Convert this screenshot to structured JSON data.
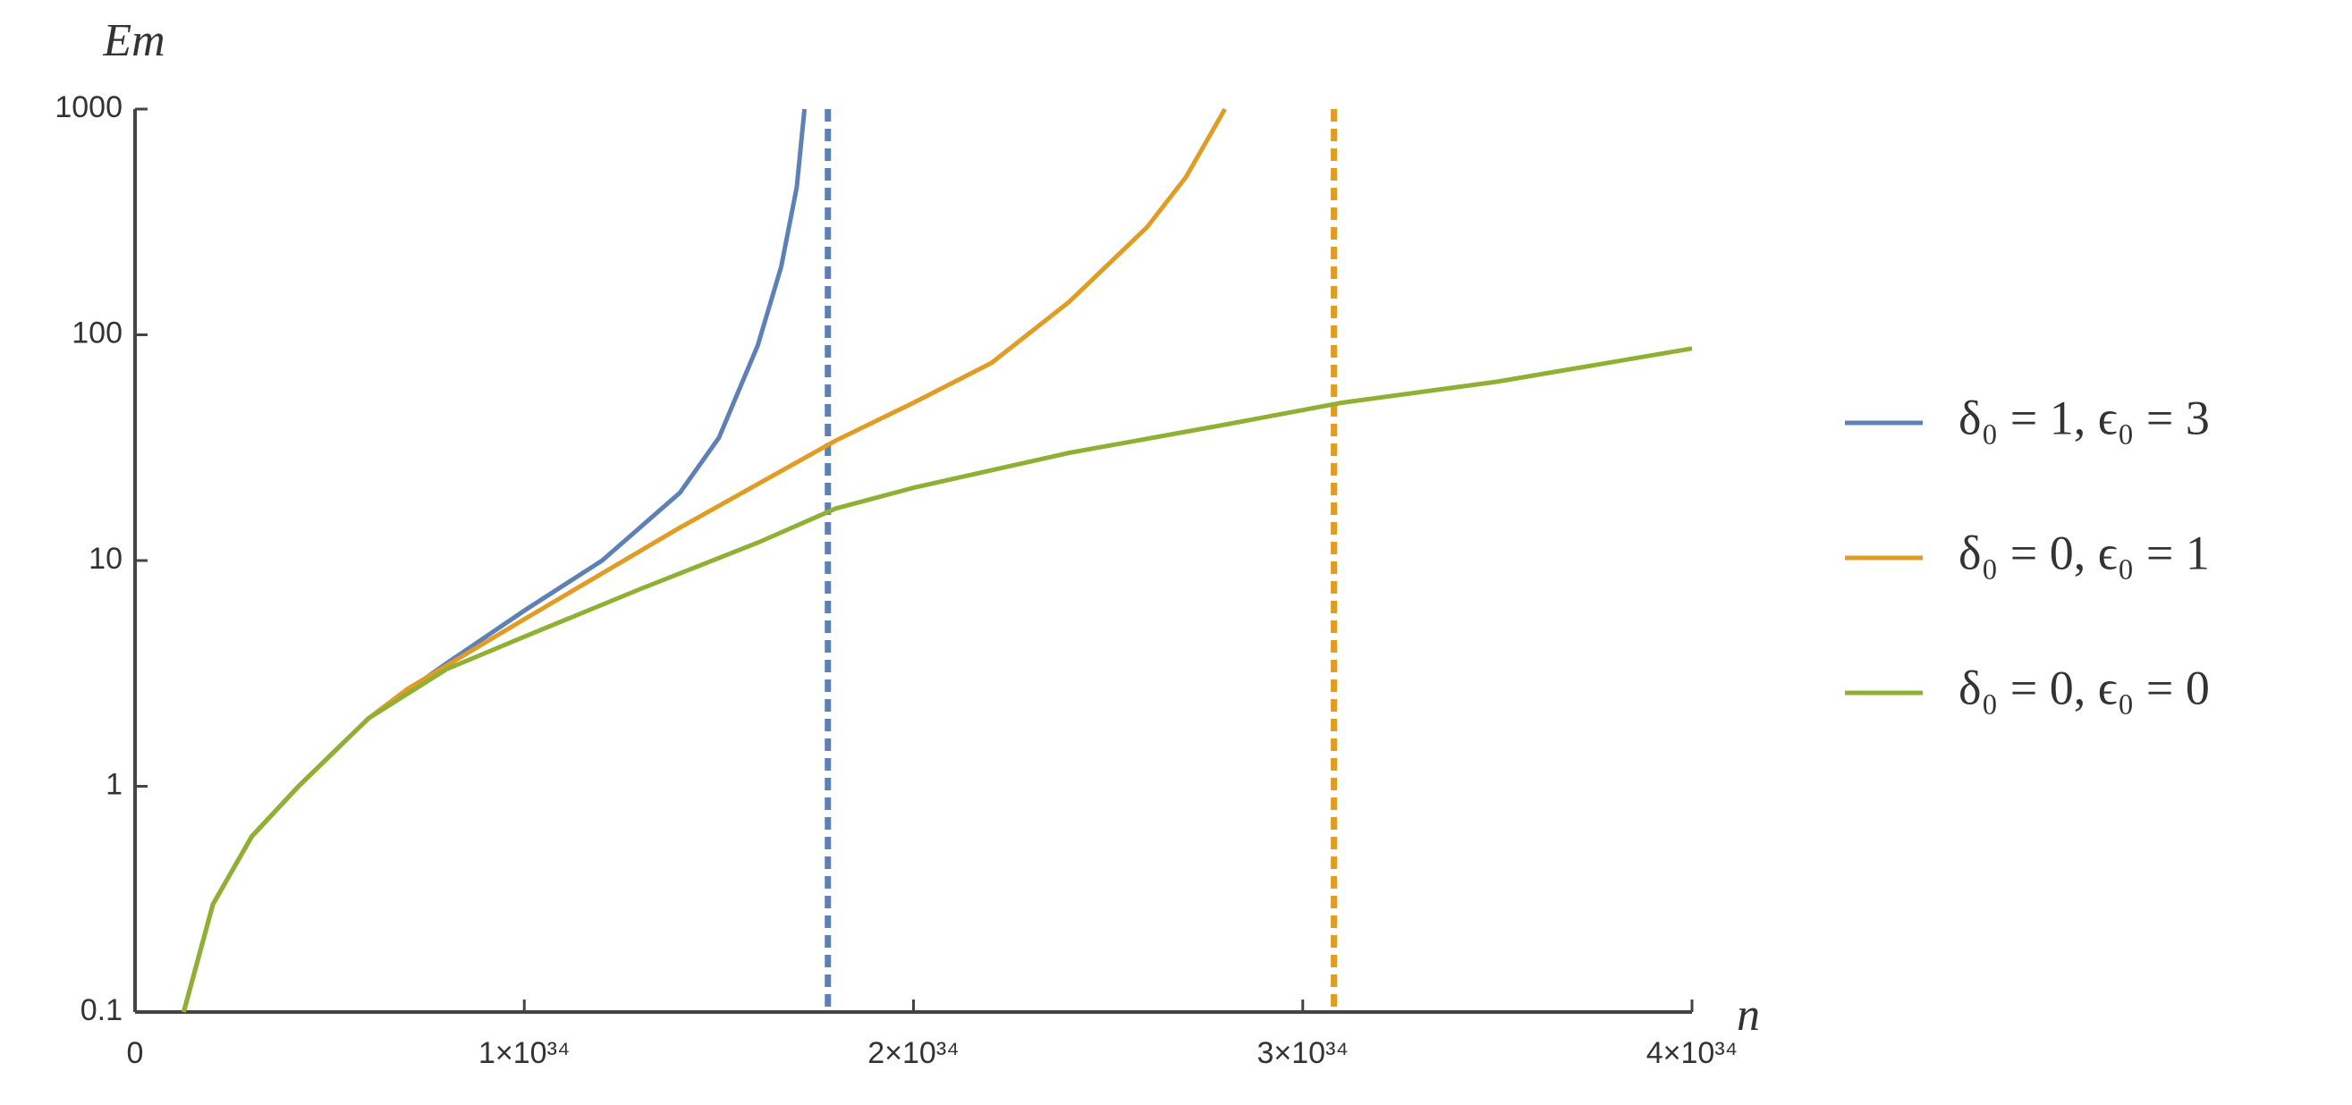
{
  "chart_data": {
    "type": "line",
    "x_label": "n",
    "y_label": "Em",
    "log_y": true,
    "xlim": [
      0,
      4e+34
    ],
    "ylim": [
      0.1,
      1000
    ],
    "xticks": [
      {
        "value": 0,
        "label": "0"
      },
      {
        "value": 1e+34,
        "label": "1×10³⁴"
      },
      {
        "value": 2e+34,
        "label": "2×10³⁴"
      },
      {
        "value": 3e+34,
        "label": "3×10³⁴"
      },
      {
        "value": 4e+34,
        "label": "4×10³⁴"
      }
    ],
    "yticks": [
      0.1,
      1,
      10,
      100,
      1000
    ],
    "series": [
      {
        "name": "δ₀ = 1, ϵ₀ = 3",
        "color": "#5e81b5",
        "x": [
          1.25e+33,
          2e+33,
          3e+33,
          4.2e+33,
          6e+33,
          8e+33,
          1e+34,
          1.2e+34,
          1.4e+34,
          1.5e+34,
          1.6e+34,
          1.66e+34,
          1.7e+34,
          1.72e+34
        ],
        "values": [
          0.1,
          0.3,
          0.6,
          1,
          2,
          3.5,
          6,
          10,
          20,
          35,
          90,
          200,
          450,
          1000
        ]
      },
      {
        "name": "δ₀ = 0, ϵ₀ = 1",
        "color": "#e19c24",
        "x": [
          1.25e+33,
          2e+33,
          3e+33,
          4.2e+33,
          6e+33,
          7e+33,
          1e+34,
          1.4e+34,
          1.8e+34,
          2e+34,
          2.2e+34,
          2.4e+34,
          2.6e+34,
          2.7e+34,
          2.8e+34
        ],
        "values": [
          0.1,
          0.3,
          0.6,
          1,
          2,
          2.7,
          5.5,
          14,
          34,
          50,
          75,
          140,
          300,
          500,
          1000
        ]
      },
      {
        "name": "δ₀ = 0, ϵ₀ = 0",
        "color": "#8fb032",
        "x": [
          1.25e+33,
          2e+33,
          3e+33,
          4.2e+33,
          6e+33,
          8e+33,
          1e+34,
          1.3e+34,
          1.6e+34,
          1.8e+34,
          2e+34,
          2.4e+34,
          2.8e+34,
          3.1e+34,
          3.5e+34,
          4e+34
        ],
        "values": [
          0.1,
          0.3,
          0.6,
          1,
          2,
          3.3,
          4.6,
          7.5,
          12,
          17,
          21,
          30,
          40,
          50,
          62,
          87
        ]
      }
    ],
    "asymptotes": [
      {
        "x": 1.78e+34,
        "color": "#5e81b5"
      },
      {
        "x": 3.08e+34,
        "color": "#e19c24"
      }
    ]
  }
}
